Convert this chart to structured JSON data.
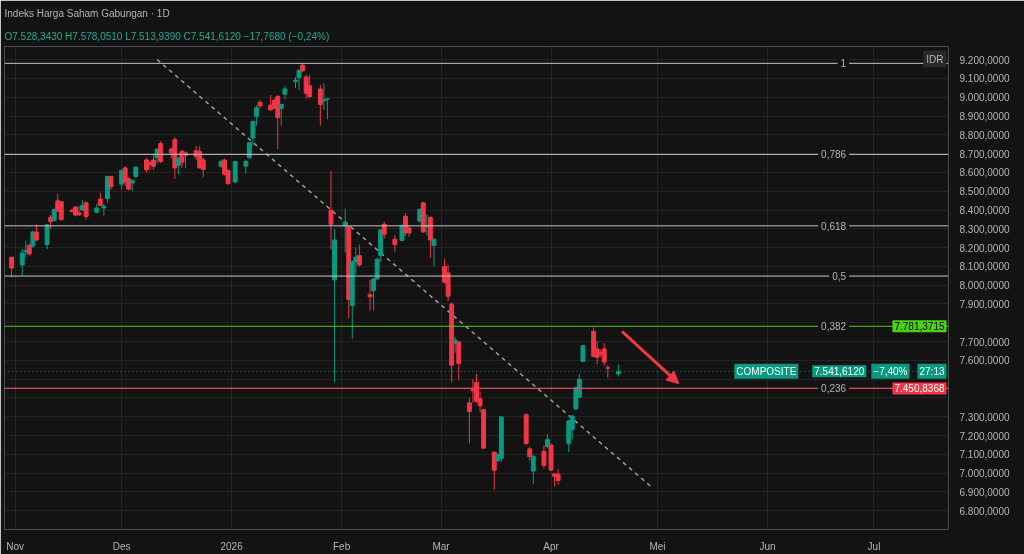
{
  "chart_data": {
    "type": "candlestick",
    "title": "Indeks Harga Saham Gabungan · 1D",
    "subtitle": "O7.528,3430 H7.578,0510 L7.513,9390 C7.541,6120 −17,7680 (−0,24%)",
    "x": [
      "2025-10-31",
      "2025-11-03",
      "2025-11-04",
      "2025-11-05",
      "2025-11-06",
      "2025-11-07",
      "2025-11-10",
      "2025-11-11",
      "2025-11-12",
      "2025-11-13",
      "2025-11-14",
      "2025-11-17",
      "2025-11-18",
      "2025-11-19",
      "2025-11-20",
      "2025-11-21",
      "2025-11-24",
      "2025-11-25",
      "2025-11-26",
      "2025-11-27",
      "2025-11-28",
      "2025-12-01",
      "2025-12-02",
      "2025-12-03",
      "2025-12-04",
      "2025-12-05",
      "2025-12-08",
      "2025-12-09",
      "2025-12-10",
      "2025-12-11",
      "2025-12-12",
      "2025-12-15",
      "2025-12-16",
      "2025-12-17",
      "2025-12-18",
      "2025-12-19",
      "2025-12-22",
      "2025-12-23",
      "2025-12-24",
      "2025-12-29",
      "2025-12-30",
      "2025-12-31",
      "2026-01-02",
      "2026-01-05",
      "2026-01-06",
      "2026-01-07",
      "2026-01-08",
      "2026-01-09",
      "2026-01-12",
      "2026-01-13",
      "2026-01-14",
      "2026-01-15",
      "2026-01-16",
      "2026-01-19",
      "2026-01-20",
      "2026-01-21",
      "2026-01-22",
      "2026-01-23",
      "2026-01-26",
      "2026-01-27",
      "2026-01-28",
      "2026-01-29",
      "2026-01-30",
      "2026-02-02",
      "2026-02-03",
      "2026-02-04",
      "2026-02-05",
      "2026-02-06",
      "2026-02-09",
      "2026-02-10",
      "2026-02-11",
      "2026-02-12",
      "2026-02-13",
      "2026-02-16",
      "2026-02-18",
      "2026-02-19",
      "2026-02-20",
      "2026-02-23",
      "2026-02-24",
      "2026-02-25",
      "2026-02-26",
      "2026-02-27",
      "2026-03-02",
      "2026-03-03",
      "2026-03-04",
      "2026-03-05",
      "2026-03-06",
      "2026-03-09",
      "2026-03-10",
      "2026-03-11",
      "2026-03-12",
      "2026-03-13",
      "2026-03-16",
      "2026-03-17",
      "2026-03-18",
      "2026-03-25",
      "2026-03-26",
      "2026-03-27",
      "2026-03-30",
      "2026-03-31",
      "2026-04-01",
      "2026-04-02",
      "2026-04-03",
      "2026-04-06",
      "2026-04-07",
      "2026-04-08",
      "2026-04-09",
      "2026-04-10",
      "2026-04-13",
      "2026-04-14",
      "2026-04-15",
      "2026-04-16",
      "2026-04-17",
      "2026-04-20"
    ],
    "ohlc": [
      [
        8149,
        8149,
        8041,
        8091
      ],
      [
        8108,
        8191,
        8049,
        8171
      ],
      [
        8178,
        8238,
        8149,
        8186
      ],
      [
        8211,
        8224,
        8158,
        8166
      ],
      [
        8208,
        8291,
        8199,
        8283
      ],
      [
        8283,
        8324,
        8233,
        8241
      ],
      [
        8216,
        8324,
        8191,
        8321
      ],
      [
        8361,
        8374,
        8299,
        8338
      ],
      [
        8344,
        8408,
        8341,
        8403
      ],
      [
        8449,
        8486,
        8391,
        8394
      ],
      [
        8444,
        8449,
        8344,
        8349
      ],
      [
        8398,
        8408,
        8388,
        8391
      ],
      [
        8416,
        8419,
        8366,
        8374
      ],
      [
        8386,
        8421,
        8371,
        8374
      ],
      [
        8399,
        8454,
        8394,
        8424
      ],
      [
        8438,
        8449,
        8349,
        8366
      ],
      [
        8388,
        8433,
        8383,
        8411
      ],
      [
        8458,
        8494,
        8421,
        8424
      ],
      [
        8411,
        8431,
        8371,
        8419
      ],
      [
        8461,
        8583,
        8438,
        8578
      ],
      [
        8578,
        8583,
        8508,
        8524
      ],
      [
        8538,
        8616,
        8508,
        8611
      ],
      [
        8624,
        8633,
        8528,
        8549
      ],
      [
        8566,
        8574,
        8504,
        8511
      ],
      [
        8544,
        8561,
        8499,
        8558
      ],
      [
        8578,
        8633,
        8571,
        8628
      ],
      [
        8666,
        8678,
        8599,
        8616
      ],
      [
        8654,
        8658,
        8611,
        8641
      ],
      [
        8666,
        8694,
        8616,
        8633
      ],
      [
        8678,
        8728,
        8649,
        8724
      ],
      [
        8754,
        8766,
        8649,
        8658
      ],
      [
        8724,
        8733,
        8674,
        8704
      ],
      [
        8774,
        8788,
        8566,
        8624
      ],
      [
        8638,
        8683,
        8591,
        8674
      ],
      [
        8711,
        8721,
        8624,
        8654
      ],
      [
        8704,
        8711,
        8624,
        8691
      ],
      [
        8716,
        8741,
        8666,
        8683
      ],
      [
        8711,
        8741,
        8621,
        8624
      ],
      [
        8666,
        8678,
        8574,
        8616
      ],
      [
        8633,
        8666,
        8624,
        8658
      ],
      [
        8666,
        8674,
        8583,
        8591
      ],
      [
        8611,
        8616,
        8533,
        8541
      ],
      [
        8549,
        8661,
        8541,
        8658
      ],
      [
        8633,
        8666,
        8594,
        8658
      ],
      [
        8678,
        8761,
        8674,
        8758
      ],
      [
        8783,
        8878,
        8741,
        8871
      ],
      [
        8899,
        8958,
        8849,
        8944
      ],
      [
        8974,
        8983,
        8941,
        8954
      ],
      [
        8958,
        9011,
        8928,
        8933
      ],
      [
        8983,
        8994,
        8938,
        8941
      ],
      [
        9004,
        9011,
        8724,
        8891
      ],
      [
        8941,
        8966,
        8849,
        8961
      ],
      [
        9016,
        9061,
        8991,
        9044
      ],
      [
        9083,
        9108,
        9049,
        9091
      ],
      [
        9104,
        9149,
        9038,
        9144
      ],
      [
        9171,
        9183,
        9133,
        9141
      ],
      [
        9108,
        9121,
        8991,
        9021
      ],
      [
        9061,
        9121,
        8994,
        9004
      ],
      [
        9044,
        9066,
        8849,
        8961
      ],
      [
        8981,
        9074,
        8933,
        8988
      ],
      [
        8989,
        8994,
        8883,
        8991
      ],
      [
        8399,
        8608,
        8191,
        8324
      ],
      [
        8028,
        8299,
        7483,
        8241
      ],
      [
        8316,
        8408,
        8174,
        8336
      ],
      [
        8311,
        8316,
        7824,
        7924
      ],
      [
        7891,
        8133,
        7716,
        8124
      ],
      [
        8124,
        8199,
        8058,
        8149
      ],
      [
        8158,
        8216,
        8099,
        8108
      ],
      [
        7949,
        8028,
        7866,
        7938
      ],
      [
        7971,
        8038,
        7866,
        8033
      ],
      [
        8033,
        8144,
        8028,
        8138
      ],
      [
        8158,
        8299,
        8124,
        8294
      ],
      [
        8324,
        8338,
        8249,
        8271
      ],
      [
        8244,
        8266,
        8178,
        8216
      ],
      [
        8238,
        8321,
        8233,
        8316
      ],
      [
        8366,
        8383,
        8261,
        8278
      ],
      [
        8304,
        8321,
        8258,
        8278
      ],
      [
        8341,
        8408,
        8333,
        8404
      ],
      [
        8438,
        8444,
        8278,
        8283
      ],
      [
        8311,
        8378,
        8266,
        8316
      ],
      [
        8361,
        8366,
        8144,
        8241
      ],
      [
        8211,
        8249,
        8099,
        8244
      ],
      [
        8099,
        8141,
        8008,
        8016
      ],
      [
        8066,
        8108,
        7916,
        7941
      ],
      [
        7899,
        7908,
        7483,
        7574
      ],
      [
        7691,
        7724,
        7641,
        7708
      ],
      [
        7699,
        7699,
        7494,
        7583
      ],
      [
        7374,
        7399,
        7158,
        7328
      ],
      [
        7444,
        7499,
        7374,
        7438
      ],
      [
        7483,
        7528,
        7374,
        7383
      ],
      [
        7396,
        7433,
        7324,
        7358
      ],
      [
        7338,
        7341,
        7128,
        7133
      ],
      [
        7111,
        7116,
        6911,
        7016
      ],
      [
        7066,
        7104,
        7058,
        7099
      ],
      [
        7078,
        7304,
        7058,
        7299
      ],
      [
        7311,
        7316,
        7149,
        7158
      ],
      [
        7129,
        7141,
        7066,
        7088
      ],
      [
        7011,
        7099,
        6941,
        7088
      ],
      [
        7116,
        7149,
        7024,
        7041
      ],
      [
        7141,
        7208,
        7133,
        7178
      ],
      [
        7149,
        7158,
        7011,
        7016
      ],
      [
        6996,
        6999,
        6928,
        6983
      ],
      [
        6994,
        7021,
        6938,
        6961
      ],
      [
        7158,
        7283,
        7111,
        7278
      ],
      [
        7233,
        7308,
        7183,
        7304
      ],
      [
        7341,
        7461,
        7338,
        7454
      ],
      [
        7404,
        7528,
        7399,
        7499
      ],
      [
        7594,
        7683,
        7591,
        7678
      ],
      [
        7754,
        7774,
        7616,
        7621
      ],
      [
        7661,
        7704,
        7578,
        7616
      ],
      [
        7644,
        7658,
        7616,
        7633
      ],
      [
        7661,
        7691,
        7571,
        7591
      ],
      [
        7561,
        7574,
        7508,
        7558
      ],
      [
        7528.343,
        7578.051,
        7513.939,
        7541.612
      ]
    ],
    "colors": [
      "#f23645",
      "#089981",
      "#089981",
      "#f23645",
      "#089981",
      "#f23645",
      "#089981",
      "#f23645",
      "#089981",
      "#f23645",
      "#f23645",
      "#f23645",
      "#f23645",
      "#f23645",
      "#089981",
      "#f23645",
      "#089981",
      "#f23645",
      "#089981",
      "#089981",
      "#f23645",
      "#089981",
      "#f23645",
      "#f23645",
      "#089981",
      "#089981",
      "#f23645",
      "#f23645",
      "#f23645",
      "#089981",
      "#f23645",
      "#f23645",
      "#f23645",
      "#089981",
      "#f23645",
      "#f23645",
      "#f23645",
      "#f23645",
      "#f23645",
      "#089981",
      "#f23645",
      "#f23645",
      "#089981",
      "#089981",
      "#089981",
      "#089981",
      "#089981",
      "#f23645",
      "#f23645",
      "#f23645",
      "#f23645",
      "#089981",
      "#089981",
      "#089981",
      "#089981",
      "#f23645",
      "#f23645",
      "#f23645",
      "#f23645",
      "#089981",
      "#089981",
      "#f23645",
      "#089981",
      "#089981",
      "#f23645",
      "#089981",
      "#089981",
      "#f23645",
      "#f23645",
      "#089981",
      "#089981",
      "#089981",
      "#f23645",
      "#f23645",
      "#089981",
      "#f23645",
      "#f23645",
      "#089981",
      "#f23645",
      "#089981",
      "#f23645",
      "#089981",
      "#f23645",
      "#f23645",
      "#f23645",
      "#089981",
      "#f23645",
      "#f23645",
      "#f23645",
      "#f23645",
      "#f23645",
      "#f23645",
      "#f23645",
      "#089981",
      "#089981",
      "#f23645",
      "#f23645",
      "#089981",
      "#f23645",
      "#089981",
      "#f23645",
      "#f23645",
      "#f23645",
      "#089981",
      "#089981",
      "#089981",
      "#089981",
      "#089981",
      "#f23645",
      "#f23645",
      "#f23645",
      "#f23645",
      "#f23645",
      "#089981"
    ],
    "series": [
      {
        "type": "line",
        "x": [
          "2025-12-11",
          "2026-04-29"
        ],
        "values": [
          9201,
          6931
        ],
        "color": "#9e9e9e",
        "line_style": "dashed"
      }
    ],
    "xlim": [
      "2025-10-29",
      "2026-07-22"
    ],
    "xticks": [
      {
        "value": "2025-11-01",
        "label": "Nov"
      },
      {
        "value": "2025-12-01",
        "label": "Des"
      },
      {
        "value": "2026-01-01",
        "label": "2026"
      },
      {
        "value": "2026-02-01",
        "label": "Feb"
      },
      {
        "value": "2026-03-01",
        "label": "Mar"
      },
      {
        "value": "2026-04-01",
        "label": "Apr"
      },
      {
        "value": "2026-05-01",
        "label": "Mei"
      },
      {
        "value": "2026-06-01",
        "label": "Jun"
      },
      {
        "value": "2026-07-01",
        "label": "Jul"
      }
    ],
    "ylim": [
      6700,
      9270
    ],
    "yticks": [
      {
        "value": 6800,
        "label": "6.800,0000"
      },
      {
        "value": 6900,
        "label": "6.900,0000"
      },
      {
        "value": 7000,
        "label": "7.000,0000"
      },
      {
        "value": 7100,
        "label": "7.100,0000"
      },
      {
        "value": 7200,
        "label": "7.200,0000"
      },
      {
        "value": 7300,
        "label": "7.300,0000"
      },
      {
        "value": 7400,
        "label": null
      },
      {
        "value": 7500,
        "label": null
      },
      {
        "value": 7600,
        "label": "7.600,0000"
      },
      {
        "value": 7700,
        "label": "7.700,0000"
      },
      {
        "value": 7800,
        "label": null
      },
      {
        "value": 7900,
        "label": "7.900,0000"
      },
      {
        "value": 8000,
        "label": "8.000,0000"
      },
      {
        "value": 8100,
        "label": "8.100,0000"
      },
      {
        "value": 8200,
        "label": "8.200,0000"
      },
      {
        "value": 8300,
        "label": "8.300,0000"
      },
      {
        "value": 8400,
        "label": "8.400,0000"
      },
      {
        "value": 8500,
        "label": "8.500,0000"
      },
      {
        "value": 8600,
        "label": "8.600,0000"
      },
      {
        "value": 8700,
        "label": "8.700,0000"
      },
      {
        "value": 8800,
        "label": "8.800,0000"
      },
      {
        "value": 8900,
        "label": "8.900,0000"
      },
      {
        "value": 9000,
        "label": "9.000,0000"
      },
      {
        "value": 9100,
        "label": "9.100,0000"
      },
      {
        "value": 9200,
        "label": "9.200,0000"
      }
    ],
    "grid": true,
    "ref_lines": [
      {
        "axis": "y",
        "value": 9180.49,
        "color": "#c8c8c8"
      },
      {
        "axis": "y",
        "value": 8696.01,
        "color": "#c8c8c8"
      },
      {
        "axis": "y",
        "value": 8315.67,
        "color": "#c8c8c8"
      },
      {
        "axis": "y",
        "value": 8048.52,
        "color": "#c8c8c8"
      },
      {
        "axis": "y",
        "value": 7781.3715,
        "color": "#4cd119"
      },
      {
        "axis": "y",
        "value": 7450.8368,
        "color": "#c8c8c8"
      },
      {
        "axis": "y",
        "value": 7450.8368,
        "color": "#f23645"
      },
      {
        "axis": "y",
        "value": 7541.612,
        "color": "#089981",
        "line_style": "dotted"
      }
    ],
    "annotations": [
      "IDR",
      {
        "text": "1",
        "x": "2026-06-24",
        "y": 9180.49
      },
      {
        "text": "0,786",
        "x": "2026-06-24",
        "y": 8696.01
      },
      {
        "text": "0,618",
        "x": "2026-06-24",
        "y": 8315.67
      },
      {
        "text": "0,5",
        "x": "2026-06-24",
        "y": 8048.52
      },
      {
        "text": "0,382",
        "x": "2026-06-24",
        "y": 7781.3715
      },
      {
        "text": "0,236",
        "x": "2026-06-24",
        "y": 7450.8368
      },
      {
        "text": "7.781,3715",
        "y": 7781.3715
      },
      {
        "text": "COMPOSITE",
        "y": 7541.612
      },
      {
        "text": "7.541,6120",
        "y": 7541.612
      },
      "−7,40%",
      "27:13",
      {
        "text": "7.450,8368",
        "y": 7450.8368
      }
    ]
  }
}
